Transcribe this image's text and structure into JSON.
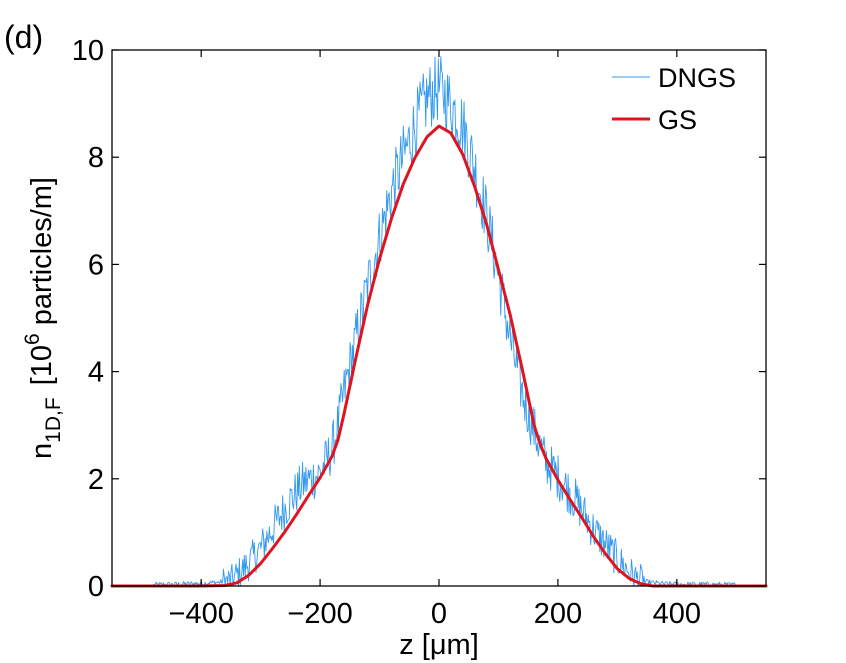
{
  "chart_data": {
    "type": "line",
    "panel_label": "(d)",
    "title": "",
    "xlabel": "z [μm]",
    "ylabel": {
      "main": "n",
      "subscript": "1D,F",
      "unit_prefix": "[10",
      "unit_exponent": "6",
      "unit_suffix": " particles/m]"
    },
    "xlim": [
      -550,
      550
    ],
    "ylim": [
      0,
      10
    ],
    "xticks": [
      -400,
      -200,
      0,
      200,
      400
    ],
    "xtick_labels": [
      "−400",
      "−200",
      "0",
      "200",
      "400"
    ],
    "yticks": [
      0,
      2,
      4,
      6,
      8,
      10
    ],
    "ytick_labels": [
      "0",
      "2",
      "4",
      "6",
      "8",
      "10"
    ],
    "grid": false,
    "legend_position": "top-right",
    "series": [
      {
        "name": "DNGS",
        "color": "#3399ee",
        "style": "thin-noisy",
        "x": [
          -550,
          -500,
          -450,
          -400,
          -370,
          -350,
          -330,
          -300,
          -270,
          -250,
          -230,
          -200,
          -180,
          -170,
          -160,
          -140,
          -120,
          -100,
          -80,
          -60,
          -40,
          -20,
          0,
          20,
          40,
          60,
          80,
          100,
          120,
          140,
          160,
          180,
          200,
          230,
          260,
          300,
          330,
          350,
          380,
          420,
          450,
          500,
          550
        ],
        "y": [
          0,
          0.02,
          0.03,
          0.05,
          0.07,
          0.1,
          0.3,
          0.7,
          1.25,
          1.6,
          1.9,
          2.1,
          2.55,
          3.0,
          3.6,
          4.6,
          5.6,
          6.5,
          7.35,
          8.0,
          8.6,
          9.1,
          9.3,
          9.0,
          8.6,
          7.8,
          6.9,
          5.8,
          4.6,
          3.6,
          2.9,
          2.3,
          2.05,
          1.6,
          1.05,
          0.5,
          0.15,
          0.07,
          0.04,
          0.03,
          0.03,
          0.02,
          0
        ]
      },
      {
        "name": "GS",
        "color": "#e0141e",
        "style": "thick-smooth",
        "x": [
          -550,
          -400,
          -360,
          -340,
          -320,
          -300,
          -280,
          -260,
          -240,
          -220,
          -200,
          -180,
          -170,
          -160,
          -140,
          -120,
          -100,
          -80,
          -60,
          -40,
          -20,
          0,
          20,
          40,
          60,
          80,
          100,
          120,
          140,
          160,
          170,
          180,
          200,
          220,
          240,
          260,
          280,
          300,
          320,
          340,
          360,
          400,
          550
        ],
        "y": [
          0,
          0,
          0.01,
          0.06,
          0.2,
          0.42,
          0.7,
          1.0,
          1.33,
          1.68,
          2.02,
          2.42,
          2.72,
          3.2,
          4.25,
          5.25,
          6.1,
          6.85,
          7.5,
          8.0,
          8.38,
          8.58,
          8.45,
          8.05,
          7.45,
          6.75,
          5.9,
          5.05,
          4.05,
          3.0,
          2.65,
          2.38,
          1.98,
          1.62,
          1.28,
          0.92,
          0.6,
          0.32,
          0.14,
          0.04,
          0.0,
          0,
          0
        ]
      }
    ]
  }
}
